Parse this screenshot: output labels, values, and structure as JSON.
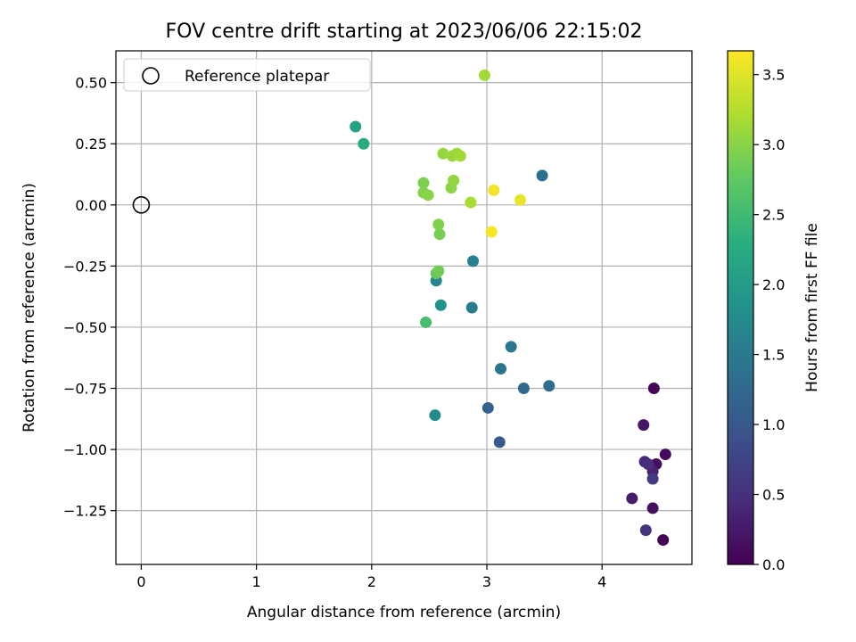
{
  "chart_data": {
    "type": "scatter",
    "title": "FOV centre drift starting at 2023/06/06 22:15:02",
    "xlabel": "Angular distance from reference (arcmin)",
    "ylabel": "Rotation from reference (arcmin)",
    "xlim": [
      -0.22,
      4.78
    ],
    "ylim": [
      -1.47,
      0.63
    ],
    "xticks": [
      0,
      1,
      2,
      3,
      4
    ],
    "xtick_labels": [
      "0",
      "1",
      "2",
      "3",
      "4"
    ],
    "yticks": [
      0.5,
      0.25,
      0.0,
      -0.25,
      -0.5,
      -0.75,
      -1.0,
      -1.25
    ],
    "ytick_labels": [
      "0.50",
      "0.25",
      "0.00",
      "−0.25",
      "−0.50",
      "−0.75",
      "−1.00",
      "−1.25"
    ],
    "grid": true,
    "legend": {
      "placement": "top-left",
      "entries": [
        "Reference platepar"
      ]
    },
    "reference_point": {
      "x": 0.0,
      "y": 0.0
    },
    "colorbar": {
      "label": "Hours from first FF file",
      "min": 0.0,
      "max": 3.67,
      "ticks": [
        0.0,
        0.5,
        1.0,
        1.5,
        2.0,
        2.5,
        3.0,
        3.5
      ],
      "tick_labels": [
        "0.0",
        "0.5",
        "1.0",
        "1.5",
        "2.0",
        "2.5",
        "3.0",
        "3.5"
      ],
      "colormap": "viridis"
    },
    "points": [
      {
        "x": 4.53,
        "y": -1.37,
        "c": 0.02
      },
      {
        "x": 4.45,
        "y": -0.75,
        "c": 0.05
      },
      {
        "x": 4.55,
        "y": -1.02,
        "c": 0.08
      },
      {
        "x": 4.47,
        "y": -1.06,
        "c": 0.12
      },
      {
        "x": 4.44,
        "y": -1.24,
        "c": 0.16
      },
      {
        "x": 4.36,
        "y": -0.9,
        "c": 0.22
      },
      {
        "x": 4.26,
        "y": -1.2,
        "c": 0.28
      },
      {
        "x": 4.44,
        "y": -1.09,
        "c": 0.34
      },
      {
        "x": 4.37,
        "y": -1.05,
        "c": 0.42
      },
      {
        "x": 4.4,
        "y": -1.06,
        "c": 0.48
      },
      {
        "x": 4.38,
        "y": -1.33,
        "c": 0.55
      },
      {
        "x": 4.44,
        "y": -1.12,
        "c": 0.62
      },
      {
        "x": 3.11,
        "y": -0.97,
        "c": 1.05
      },
      {
        "x": 3.01,
        "y": -0.83,
        "c": 1.15
      },
      {
        "x": 3.32,
        "y": -0.75,
        "c": 1.25
      },
      {
        "x": 3.54,
        "y": -0.74,
        "c": 1.3
      },
      {
        "x": 3.48,
        "y": 0.12,
        "c": 1.32
      },
      {
        "x": 3.12,
        "y": -0.67,
        "c": 1.4
      },
      {
        "x": 3.21,
        "y": -0.58,
        "c": 1.45
      },
      {
        "x": 2.87,
        "y": -0.42,
        "c": 1.52
      },
      {
        "x": 2.88,
        "y": -0.23,
        "c": 1.58
      },
      {
        "x": 2.56,
        "y": -0.31,
        "c": 1.65
      },
      {
        "x": 2.55,
        "y": -0.86,
        "c": 1.75
      },
      {
        "x": 2.6,
        "y": -0.41,
        "c": 1.85
      },
      {
        "x": 1.86,
        "y": 0.32,
        "c": 2.1
      },
      {
        "x": 1.93,
        "y": 0.25,
        "c": 2.25
      },
      {
        "x": 2.47,
        "y": -0.48,
        "c": 2.55
      },
      {
        "x": 2.56,
        "y": -0.28,
        "c": 2.78
      },
      {
        "x": 2.58,
        "y": -0.27,
        "c": 2.85
      },
      {
        "x": 2.59,
        "y": -0.12,
        "c": 2.9
      },
      {
        "x": 2.58,
        "y": -0.08,
        "c": 2.95
      },
      {
        "x": 2.45,
        "y": 0.09,
        "c": 2.92
      },
      {
        "x": 2.45,
        "y": 0.05,
        "c": 2.96
      },
      {
        "x": 2.49,
        "y": 0.04,
        "c": 3.0
      },
      {
        "x": 2.69,
        "y": 0.07,
        "c": 3.02
      },
      {
        "x": 2.71,
        "y": 0.1,
        "c": 3.05
      },
      {
        "x": 2.62,
        "y": 0.21,
        "c": 3.08
      },
      {
        "x": 2.7,
        "y": 0.2,
        "c": 3.1
      },
      {
        "x": 2.74,
        "y": 0.21,
        "c": 3.12
      },
      {
        "x": 2.77,
        "y": 0.2,
        "c": 3.14
      },
      {
        "x": 2.98,
        "y": 0.53,
        "c": 3.15
      },
      {
        "x": 2.86,
        "y": 0.01,
        "c": 3.2
      },
      {
        "x": 3.29,
        "y": 0.02,
        "c": 3.55
      },
      {
        "x": 3.06,
        "y": 0.06,
        "c": 3.6
      },
      {
        "x": 3.04,
        "y": -0.11,
        "c": 3.64
      }
    ]
  }
}
